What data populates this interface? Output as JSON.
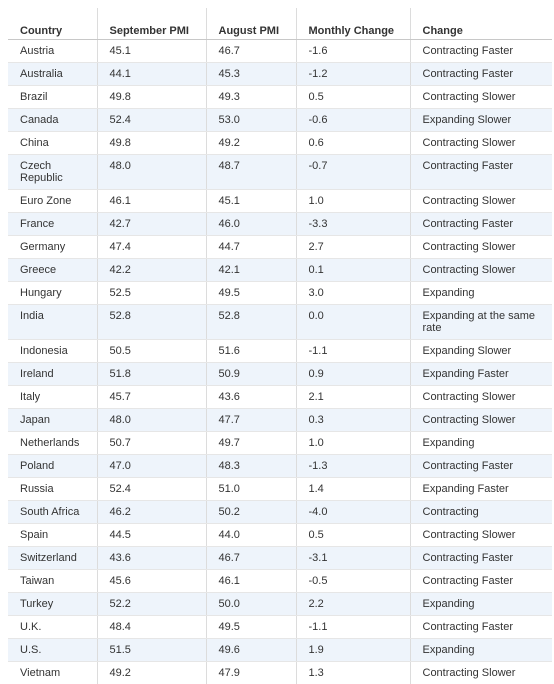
{
  "header": {
    "country": "Country",
    "september": "September PMI",
    "august": "August PMI",
    "monthly": "Monthly Change",
    "change": "Change"
  },
  "rows": [
    {
      "country": "Austria",
      "sep": "45.1",
      "aug": "46.7",
      "mc": "-1.6",
      "change": "Contracting Faster"
    },
    {
      "country": "Australia",
      "sep": "44.1",
      "aug": "45.3",
      "mc": "-1.2",
      "change": "Contracting Faster"
    },
    {
      "country": "Brazil",
      "sep": "49.8",
      "aug": "49.3",
      "mc": "0.5",
      "change": "Contracting Slower"
    },
    {
      "country": "Canada",
      "sep": "52.4",
      "aug": "53.0",
      "mc": "-0.6",
      "change": "Expanding Slower"
    },
    {
      "country": "China",
      "sep": "49.8",
      "aug": "49.2",
      "mc": "0.6",
      "change": "Contracting Slower"
    },
    {
      "country": "Czech Republic",
      "sep": "48.0",
      "aug": "48.7",
      "mc": "-0.7",
      "change": "Contracting Faster"
    },
    {
      "country": "Euro Zone",
      "sep": "46.1",
      "aug": "45.1",
      "mc": "1.0",
      "change": "Contracting Slower"
    },
    {
      "country": "France",
      "sep": "42.7",
      "aug": "46.0",
      "mc": "-3.3",
      "change": "Contracting Faster"
    },
    {
      "country": "Germany",
      "sep": "47.4",
      "aug": "44.7",
      "mc": "2.7",
      "change": "Contracting Slower"
    },
    {
      "country": "Greece",
      "sep": "42.2",
      "aug": "42.1",
      "mc": "0.1",
      "change": "Contracting Slower"
    },
    {
      "country": "Hungary",
      "sep": "52.5",
      "aug": "49.5",
      "mc": "3.0",
      "change": "Expanding"
    },
    {
      "country": "India",
      "sep": "52.8",
      "aug": "52.8",
      "mc": "0.0",
      "change": "Expanding at the same rate"
    },
    {
      "country": "Indonesia",
      "sep": "50.5",
      "aug": "51.6",
      "mc": "-1.1",
      "change": "Expanding Slower"
    },
    {
      "country": "Ireland",
      "sep": "51.8",
      "aug": "50.9",
      "mc": "0.9",
      "change": "Expanding Faster"
    },
    {
      "country": "Italy",
      "sep": "45.7",
      "aug": "43.6",
      "mc": "2.1",
      "change": "Contracting Slower"
    },
    {
      "country": "Japan",
      "sep": "48.0",
      "aug": "47.7",
      "mc": "0.3",
      "change": "Contracting Slower"
    },
    {
      "country": "Netherlands",
      "sep": "50.7",
      "aug": "49.7",
      "mc": "1.0",
      "change": "Expanding"
    },
    {
      "country": "Poland",
      "sep": "47.0",
      "aug": "48.3",
      "mc": "-1.3",
      "change": "Contracting Faster"
    },
    {
      "country": "Russia",
      "sep": "52.4",
      "aug": "51.0",
      "mc": "1.4",
      "change": "Expanding Faster"
    },
    {
      "country": "South Africa",
      "sep": "46.2",
      "aug": "50.2",
      "mc": "-4.0",
      "change": "Contracting"
    },
    {
      "country": "Spain",
      "sep": "44.5",
      "aug": "44.0",
      "mc": "0.5",
      "change": "Contracting Slower"
    },
    {
      "country": "Switzerland",
      "sep": "43.6",
      "aug": "46.7",
      "mc": "-3.1",
      "change": "Contracting Faster"
    },
    {
      "country": "Taiwan",
      "sep": "45.6",
      "aug": "46.1",
      "mc": "-0.5",
      "change": "Contracting Faster"
    },
    {
      "country": "Turkey",
      "sep": "52.2",
      "aug": "50.0",
      "mc": "2.2",
      "change": "Expanding"
    },
    {
      "country": "U.K.",
      "sep": "48.4",
      "aug": "49.5",
      "mc": "-1.1",
      "change": "Contracting Faster"
    },
    {
      "country": "U.S.",
      "sep": "51.5",
      "aug": "49.6",
      "mc": "1.9",
      "change": "Expanding"
    },
    {
      "country": "Vietnam",
      "sep": "49.2",
      "aug": "47.9",
      "mc": "1.3",
      "change": "Contracting Slower"
    }
  ]
}
